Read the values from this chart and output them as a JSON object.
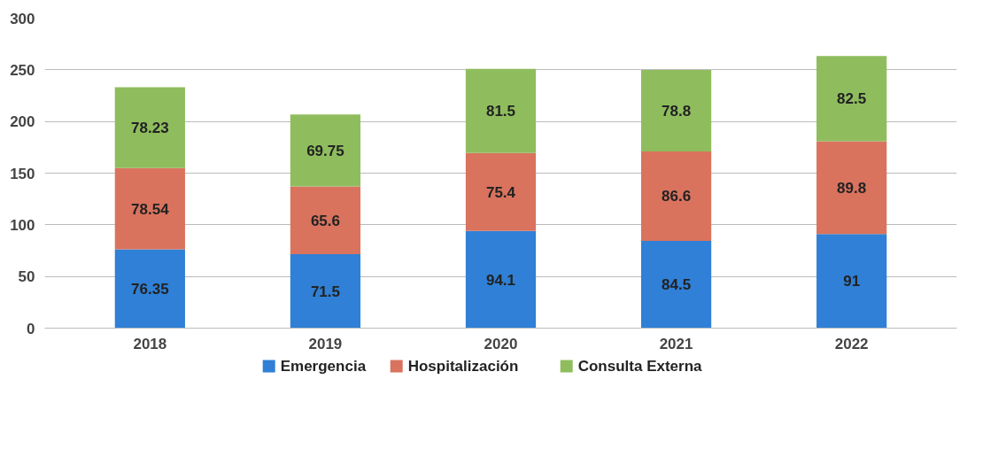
{
  "chart_data": {
    "type": "bar",
    "stacked": true,
    "categories": [
      "2018",
      "2019",
      "2020",
      "2021",
      "2022"
    ],
    "series": [
      {
        "name": "Emergencia",
        "color": "#2f80d6",
        "values": [
          76.35,
          71.5,
          94.1,
          84.5,
          91
        ]
      },
      {
        "name": "Hospitalización",
        "color": "#d9735e",
        "values": [
          78.54,
          65.6,
          75.4,
          86.6,
          89.8
        ]
      },
      {
        "name": "Consulta Externa",
        "color": "#8fbd5e",
        "values": [
          78.23,
          69.75,
          81.5,
          78.8,
          82.5
        ]
      }
    ],
    "ylim": [
      0,
      300
    ],
    "yticks": [
      0,
      50,
      100,
      150,
      200,
      250,
      300
    ],
    "grid": "y",
    "legend": "bottom",
    "data_labels": true
  }
}
